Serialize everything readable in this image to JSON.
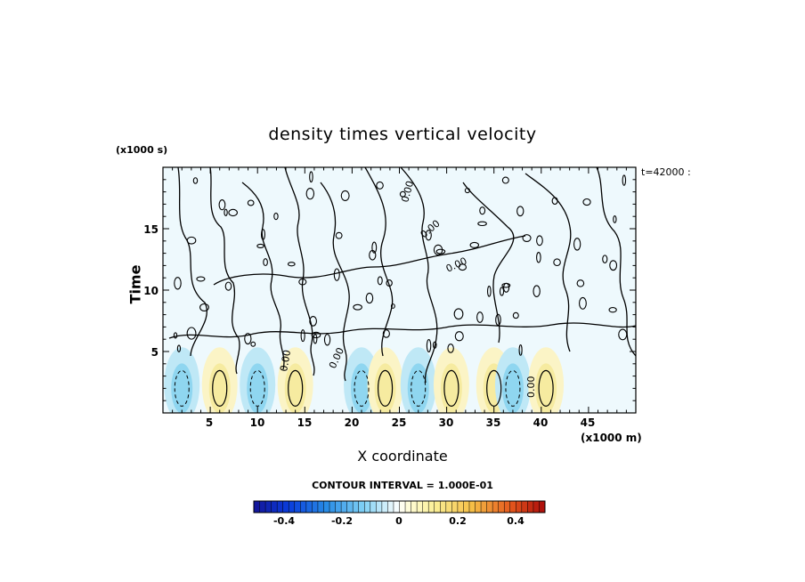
{
  "chart_data": {
    "type": "heatmap",
    "title": "density times vertical velocity",
    "xlabel": "X coordinate",
    "ylabel": "Time",
    "x_unit": "(x1000 m)",
    "y_unit": "(x1000 s)",
    "time_stamp": "t=42000 :",
    "xlim": [
      0,
      50
    ],
    "ylim": [
      0,
      20
    ],
    "x_ticks": [
      "5",
      "10",
      "15",
      "20",
      "25",
      "30",
      "35",
      "40",
      "45"
    ],
    "y_ticks": [
      "5",
      "10",
      "15"
    ],
    "contour_interval": "CONTOUR INTERVAL = 1.000E-01",
    "contour_labels": [
      "0.00",
      "0.00",
      "0.00",
      "0.00",
      "0.00",
      "0.00"
    ],
    "colorbar": {
      "range": [
        -0.5,
        0.5
      ],
      "tick_labels": [
        "-0.4",
        "-0.2",
        "0",
        "0.2",
        "0.4"
      ],
      "colormap": "blue-white-red"
    },
    "bands": [
      {
        "x": 2,
        "type": "negative"
      },
      {
        "x": 6,
        "type": "positive"
      },
      {
        "x": 10,
        "type": "negative"
      },
      {
        "x": 14,
        "type": "positive"
      },
      {
        "x": 21,
        "type": "negative"
      },
      {
        "x": 23.5,
        "type": "positive"
      },
      {
        "x": 27,
        "type": "negative"
      },
      {
        "x": 30.5,
        "type": "positive"
      },
      {
        "x": 35,
        "type": "positive"
      },
      {
        "x": 37,
        "type": "negative"
      },
      {
        "x": 40.5,
        "type": "positive"
      }
    ]
  }
}
